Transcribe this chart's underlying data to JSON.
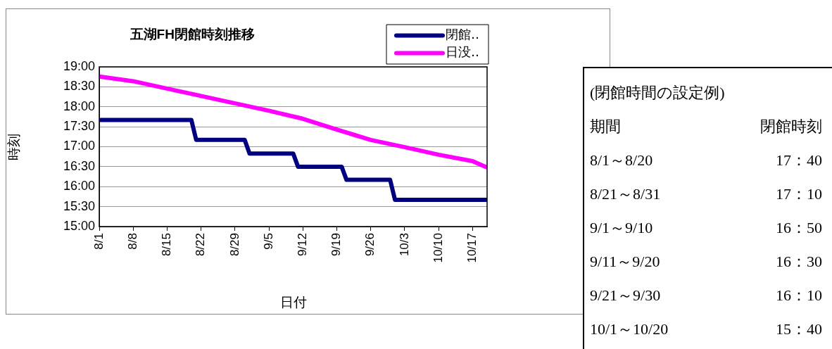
{
  "chart_data": [
    {
      "type": "line",
      "title": "五湖FH閉館時刻推移",
      "xlabel": "日付",
      "ylabel": "時刻",
      "xlim": [
        "--08-01",
        "--10-20"
      ],
      "xticks": [
        {
          "value": "--08-01",
          "label": "8/1"
        },
        {
          "value": "--08-08",
          "label": "8/8"
        },
        {
          "value": "--08-15",
          "label": "8/15"
        },
        {
          "value": "--08-22",
          "label": "8/22"
        },
        {
          "value": "--08-29",
          "label": "8/29"
        },
        {
          "value": "--09-05",
          "label": "9/5"
        },
        {
          "value": "--09-12",
          "label": "9/12"
        },
        {
          "value": "--09-19",
          "label": "9/19"
        },
        {
          "value": "--09-26",
          "label": "9/26"
        },
        {
          "value": "--10-03",
          "label": "10/3"
        },
        {
          "value": "--10-10",
          "label": "10/10"
        },
        {
          "value": "--10-17",
          "label": "10/17"
        }
      ],
      "ylim": [
        15,
        19
      ],
      "yticks": [
        {
          "value": 15,
          "label": "15:00"
        },
        {
          "value": 15.5,
          "label": "15:30"
        },
        {
          "value": 16,
          "label": "16:00"
        },
        {
          "value": 16.5,
          "label": "16:30"
        },
        {
          "value": 17,
          "label": "17:00"
        },
        {
          "value": 17.5,
          "label": "17:30"
        },
        {
          "value": 18,
          "label": "18:00"
        },
        {
          "value": 18.5,
          "label": "18:30"
        },
        {
          "value": 19,
          "label": "19:00"
        }
      ],
      "grid": "y",
      "legend": "top right",
      "marker": "none",
      "line_style": "solid",
      "series": [
        {
          "name": "閉館‥",
          "color": "#000080",
          "x": [
            "--08-01",
            "--08-20",
            "--08-21",
            "--08-31",
            "--09-01",
            "--09-10",
            "--09-11",
            "--09-20",
            "--09-21",
            "--09-30",
            "--10-01",
            "--10-20"
          ],
          "values": [
            17.67,
            17.67,
            17.17,
            17.17,
            16.83,
            16.83,
            16.5,
            16.5,
            16.17,
            16.17,
            15.67,
            15.67
          ]
        },
        {
          "name": "日没‥",
          "color": "#ff00ff",
          "x": [
            "--08-01",
            "--08-08",
            "--08-22",
            "--09-05",
            "--09-12",
            "--09-19",
            "--09-26",
            "--10-03",
            "--10-10",
            "--10-17",
            "--10-20"
          ],
          "values": [
            18.76,
            18.64,
            18.27,
            17.9,
            17.7,
            17.43,
            17.17,
            16.99,
            16.8,
            16.64,
            16.48
          ]
        }
      ]
    },
    {
      "type": "other",
      "title": "(閉館時間の設定例)",
      "annotations": [
        "期間",
        "閉館時刻",
        "8/1～8/20",
        "17：40",
        "8/21～8/31",
        "17：10",
        "9/1～9/10",
        "16：50",
        "9/11～9/20",
        "16：30",
        "9/21～9/30",
        "16：10",
        "10/1～10/20",
        "15：40"
      ]
    }
  ]
}
